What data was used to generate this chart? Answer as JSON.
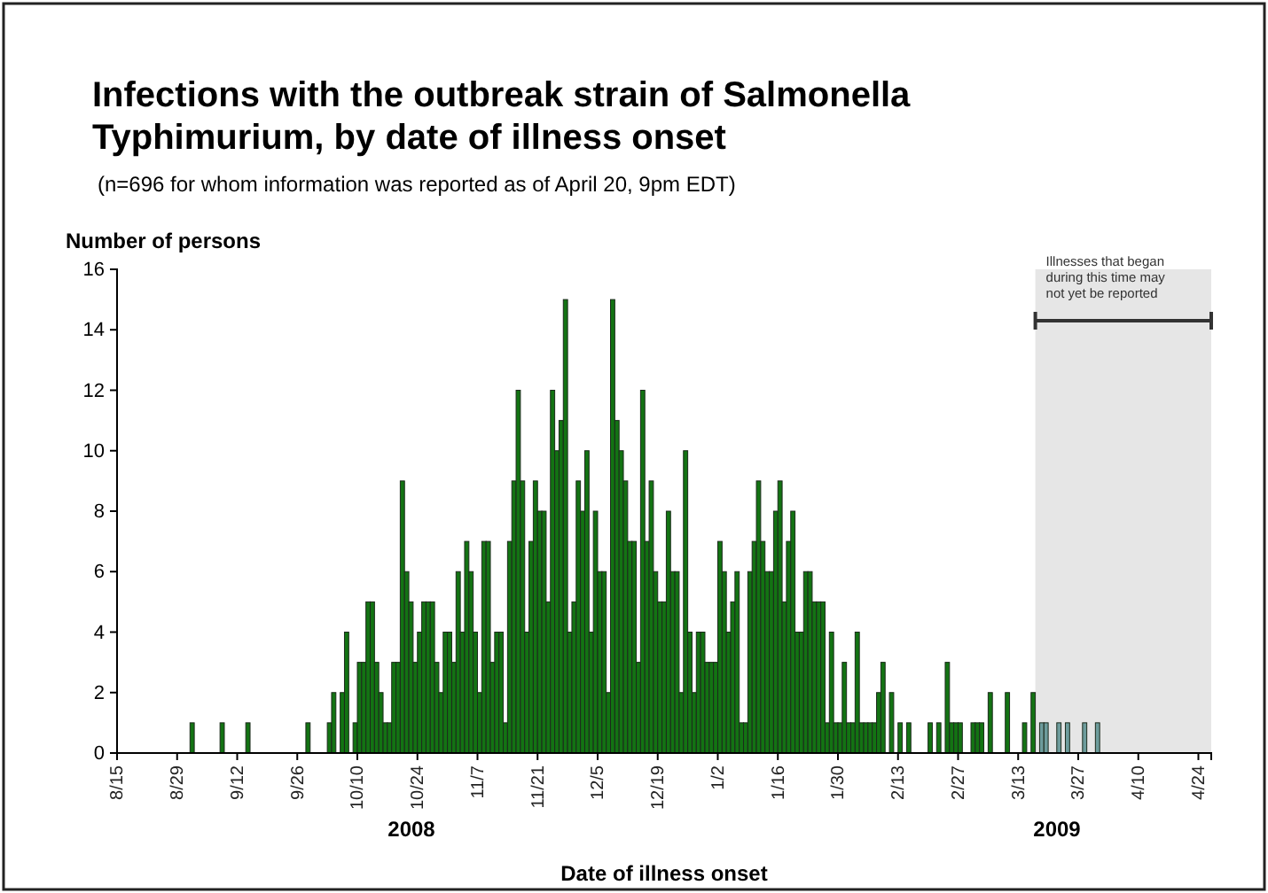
{
  "chart_data": {
    "type": "bar",
    "title": "Infections with the outbreak strain of Salmonella Typhimurium, by date of illness onset",
    "subtitle": "(n=696 for whom information was reported as of April 20, 9pm EDT)",
    "xlabel": "Date of illness onset",
    "ylabel": "Number of persons",
    "xlim": [
      "2008-08-15",
      "2009-04-27"
    ],
    "xticks": [
      {
        "value": "2008-08-15",
        "label": "8/15"
      },
      {
        "value": "2008-08-29",
        "label": "8/29"
      },
      {
        "value": "2008-09-12",
        "label": "9/12"
      },
      {
        "value": "2008-09-26",
        "label": "9/26"
      },
      {
        "value": "2008-10-10",
        "label": "10/10"
      },
      {
        "value": "2008-10-24",
        "label": "10/24"
      },
      {
        "value": "2008-11-07",
        "label": "11/7"
      },
      {
        "value": "2008-11-21",
        "label": "11/21"
      },
      {
        "value": "2008-12-05",
        "label": "12/5"
      },
      {
        "value": "2008-12-19",
        "label": "12/19"
      },
      {
        "value": "2009-01-02",
        "label": "1/2"
      },
      {
        "value": "2009-01-16",
        "label": "1/16"
      },
      {
        "value": "2009-01-30",
        "label": "1/30"
      },
      {
        "value": "2009-02-13",
        "label": "2/13"
      },
      {
        "value": "2009-02-27",
        "label": "2/27"
      },
      {
        "value": "2009-03-13",
        "label": "3/13"
      },
      {
        "value": "2009-03-27",
        "label": "3/27"
      },
      {
        "value": "2009-04-10",
        "label": "4/10"
      },
      {
        "value": "2009-04-24",
        "label": "4/24"
      }
    ],
    "ylim": [
      0,
      16
    ],
    "yticks": [
      0,
      2,
      4,
      6,
      8,
      10,
      12,
      14,
      16
    ],
    "grid": false,
    "bands": [
      {
        "axis": "x",
        "from": "2009-03-17",
        "to": "2009-04-27",
        "label": "Illnesses that began during this time may not yet be reported",
        "color": "#e6e6e6"
      }
    ],
    "annotations": [
      "2008",
      "2009"
    ],
    "series": [
      {
        "color": "#137313",
        "x": [
          "2008-09-01",
          "2008-09-08",
          "2008-09-14",
          "2008-09-28",
          "2008-10-03",
          "2008-10-04",
          "2008-10-06",
          "2008-10-07",
          "2008-10-09",
          "2008-10-10",
          "2008-10-11",
          "2008-10-12",
          "2008-10-13",
          "2008-10-14",
          "2008-10-15",
          "2008-10-16",
          "2008-10-17",
          "2008-10-18",
          "2008-10-19",
          "2008-10-20",
          "2008-10-21",
          "2008-10-22",
          "2008-10-23",
          "2008-10-24",
          "2008-10-25",
          "2008-10-26",
          "2008-10-27",
          "2008-10-28",
          "2008-10-29",
          "2008-10-30",
          "2008-10-31",
          "2008-11-01",
          "2008-11-02",
          "2008-11-03",
          "2008-11-04",
          "2008-11-05",
          "2008-11-06",
          "2008-11-07",
          "2008-11-08",
          "2008-11-09",
          "2008-11-10",
          "2008-11-11",
          "2008-11-12",
          "2008-11-13",
          "2008-11-14",
          "2008-11-15",
          "2008-11-16",
          "2008-11-17",
          "2008-11-18",
          "2008-11-19",
          "2008-11-20",
          "2008-11-21",
          "2008-11-22",
          "2008-11-23",
          "2008-11-24",
          "2008-11-25",
          "2008-11-26",
          "2008-11-27",
          "2008-11-28",
          "2008-11-29",
          "2008-11-30",
          "2008-12-01",
          "2008-12-02",
          "2008-12-03",
          "2008-12-04",
          "2008-12-05",
          "2008-12-06",
          "2008-12-07",
          "2008-12-08",
          "2008-12-09",
          "2008-12-10",
          "2008-12-11",
          "2008-12-12",
          "2008-12-13",
          "2008-12-14",
          "2008-12-15",
          "2008-12-16",
          "2008-12-17",
          "2008-12-18",
          "2008-12-19",
          "2008-12-20",
          "2008-12-21",
          "2008-12-22",
          "2008-12-23",
          "2008-12-24",
          "2008-12-25",
          "2008-12-26",
          "2008-12-27",
          "2008-12-28",
          "2008-12-29",
          "2008-12-30",
          "2008-12-31",
          "2009-01-01",
          "2009-01-02",
          "2009-01-03",
          "2009-01-04",
          "2009-01-05",
          "2009-01-06",
          "2009-01-07",
          "2009-01-08",
          "2009-01-09",
          "2009-01-10",
          "2009-01-11",
          "2009-01-12",
          "2009-01-13",
          "2009-01-14",
          "2009-01-15",
          "2009-01-16",
          "2009-01-17",
          "2009-01-18",
          "2009-01-19",
          "2009-01-20",
          "2009-01-21",
          "2009-01-22",
          "2009-01-23",
          "2009-01-24",
          "2009-01-25",
          "2009-01-26",
          "2009-01-27",
          "2009-01-28",
          "2009-01-29",
          "2009-01-30",
          "2009-01-31",
          "2009-02-01",
          "2009-02-02",
          "2009-02-03",
          "2009-02-04",
          "2009-02-05",
          "2009-02-06",
          "2009-02-07",
          "2009-02-08",
          "2009-02-09",
          "2009-02-11",
          "2009-02-13",
          "2009-02-15",
          "2009-02-20",
          "2009-02-22",
          "2009-02-24",
          "2009-02-25",
          "2009-02-26",
          "2009-02-27",
          "2009-03-02",
          "2009-03-03",
          "2009-03-04",
          "2009-03-06",
          "2009-03-10",
          "2009-03-14",
          "2009-03-16"
        ],
        "values": [
          1,
          1,
          1,
          1,
          1,
          2,
          2,
          4,
          1,
          3,
          3,
          5,
          5,
          3,
          2,
          1,
          1,
          3,
          3,
          9,
          6,
          5,
          3,
          4,
          5,
          5,
          5,
          3,
          2,
          4,
          4,
          3,
          6,
          4,
          7,
          6,
          4,
          2,
          7,
          7,
          3,
          4,
          4,
          1,
          7,
          9,
          12,
          9,
          4,
          7,
          9,
          8,
          8,
          5,
          12,
          10,
          11,
          15,
          4,
          5,
          9,
          8,
          10,
          4,
          8,
          6,
          6,
          2,
          15,
          11,
          10,
          9,
          7,
          7,
          3,
          12,
          7,
          9,
          6,
          5,
          5,
          8,
          6,
          6,
          2,
          10,
          4,
          2,
          4,
          4,
          3,
          3,
          3,
          7,
          6,
          4,
          5,
          6,
          1,
          1,
          6,
          7,
          9,
          7,
          6,
          6,
          8,
          9,
          5,
          7,
          8,
          4,
          4,
          6,
          6,
          5,
          5,
          5,
          1,
          4,
          1,
          1,
          3,
          1,
          1,
          4,
          1,
          1,
          1,
          1,
          2,
          3,
          2,
          1,
          1,
          1,
          1,
          3,
          1,
          1,
          1,
          1,
          1,
          1,
          2,
          2,
          1,
          2
        ]
      },
      {
        "color": "#6d9c9c",
        "x": [
          "2009-03-18",
          "2009-03-19",
          "2009-03-22",
          "2009-03-24",
          "2009-03-28",
          "2009-03-31"
        ],
        "values": [
          1,
          1,
          1,
          1,
          1,
          1
        ]
      }
    ]
  }
}
